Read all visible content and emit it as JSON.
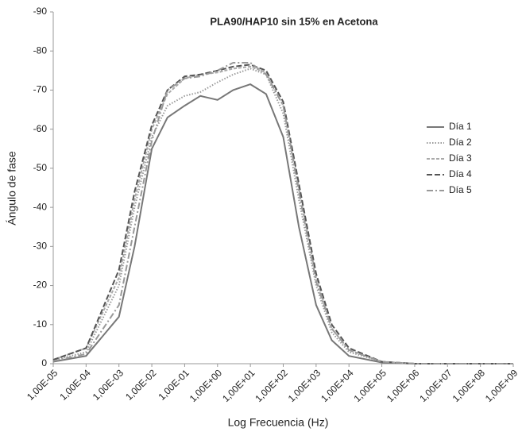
{
  "chart_data": {
    "type": "line",
    "title": "PLA90/HAP10 sin 15% en Acetona",
    "x_label": "Log Frecuencia (Hz)",
    "y_label": "Ángulo de fase",
    "x_scale": "log",
    "legend": "right",
    "grid": false,
    "x": [
      1e-05,
      0.0001,
      0.001,
      0.003,
      0.01,
      0.03,
      0.1,
      0.3,
      1,
      3,
      10,
      30,
      100,
      300,
      1000,
      3000,
      10000,
      100000,
      1000000,
      1000000000
    ],
    "series": [
      {
        "name": "Día 1",
        "color": "#777777",
        "dash": "solid",
        "values": [
          -0.5,
          -2,
          -12,
          -30,
          -55,
          -63,
          -66,
          -68.5,
          -67.5,
          -70,
          -71.5,
          -69,
          -58,
          -35,
          -15,
          -6,
          -2,
          -0.3,
          0,
          0
        ]
      },
      {
        "name": "Día 2",
        "color": "#999999",
        "dash": "dotted",
        "values": [
          -0.8,
          -3,
          -20,
          -40,
          -58,
          -66,
          -68.5,
          -69.5,
          -72,
          -74,
          -75.5,
          -74,
          -64,
          -42,
          -20,
          -8,
          -3,
          -0.5,
          0,
          0
        ]
      },
      {
        "name": "Día 3",
        "color": "#aaaaaa",
        "dash": "short-dash",
        "values": [
          -1,
          -4,
          -22,
          -42,
          -60,
          -69,
          -73,
          -74,
          -74.5,
          -75.5,
          -76,
          -74.5,
          -66,
          -45,
          -22,
          -9,
          -3.5,
          -0.5,
          0,
          0
        ]
      },
      {
        "name": "Día 4",
        "color": "#555555",
        "dash": "dash",
        "values": [
          -1,
          -4,
          -24,
          -44,
          -61,
          -70,
          -73.5,
          -74,
          -75,
          -76,
          -76.5,
          -75,
          -67,
          -46,
          -23,
          -10,
          -4,
          -0.5,
          0,
          0
        ]
      },
      {
        "name": "Día 5",
        "color": "#999999",
        "dash": "dash-dot",
        "values": [
          -0.7,
          -2.5,
          -15,
          -35,
          -57,
          -70,
          -73,
          -73.5,
          -75,
          -77,
          -77,
          -74,
          -66,
          -44,
          -21,
          -9,
          -3.5,
          -0.5,
          0,
          0
        ]
      }
    ],
    "xlim": [
      1e-05,
      1000000000
    ],
    "xticks": [
      {
        "value": 1e-05,
        "label": "1,00E-05"
      },
      {
        "value": 0.0001,
        "label": "1,00E-04"
      },
      {
        "value": 0.001,
        "label": "1,00E-03"
      },
      {
        "value": 0.01,
        "label": "1,00E-02"
      },
      {
        "value": 0.1,
        "label": "1,00E-01"
      },
      {
        "value": 1,
        "label": "1,00E+00"
      },
      {
        "value": 10,
        "label": "1,00E+01"
      },
      {
        "value": 100,
        "label": "1,00E+02"
      },
      {
        "value": 1000,
        "label": "1,00E+03"
      },
      {
        "value": 10000,
        "label": "1,00E+04"
      },
      {
        "value": 100000,
        "label": "1,00E+05"
      },
      {
        "value": 1000000,
        "label": "1,00E+06"
      },
      {
        "value": 10000000,
        "label": "1,00E+07"
      },
      {
        "value": 100000000,
        "label": "1,00E+08"
      },
      {
        "value": 1000000000,
        "label": "1,00E+09"
      }
    ],
    "ylim": [
      0,
      -90
    ],
    "yticks": [
      0,
      -10,
      -20,
      -30,
      -40,
      -50,
      -60,
      -70,
      -80,
      -90
    ]
  }
}
